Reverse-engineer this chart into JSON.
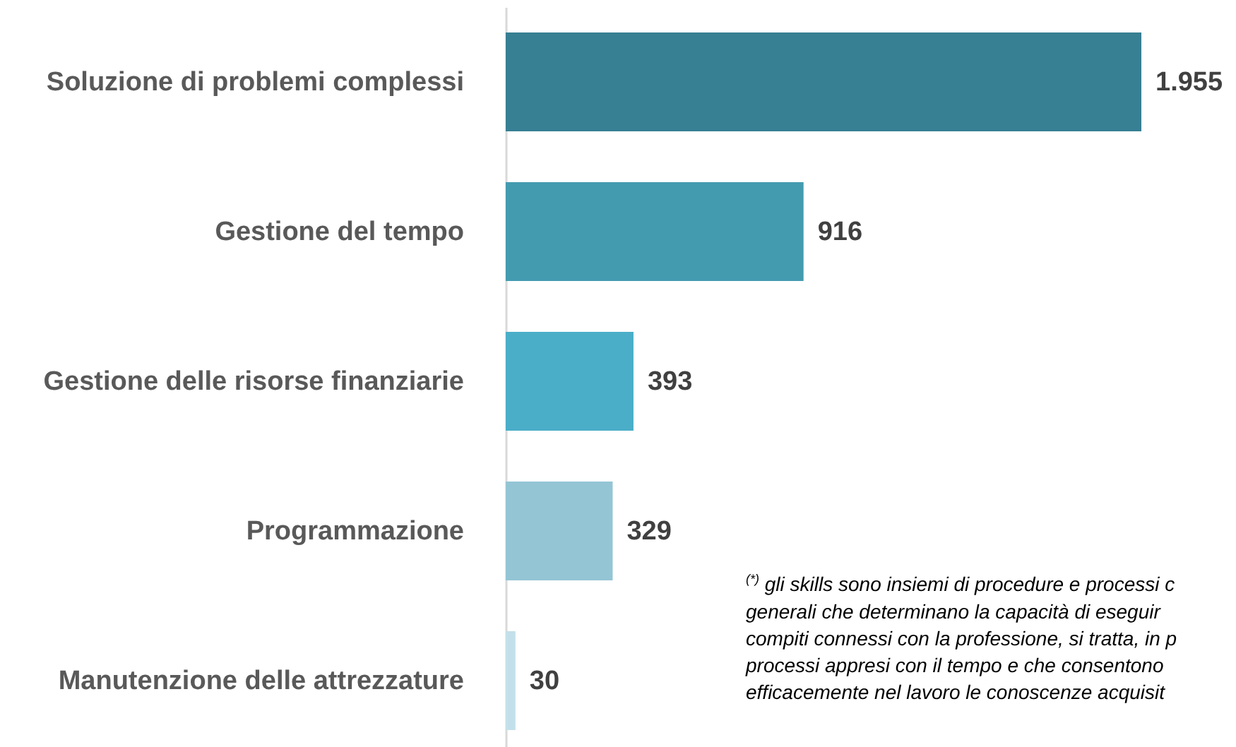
{
  "chart_data": {
    "type": "bar",
    "orientation": "horizontal",
    "categories": [
      "Soluzione di problemi complessi",
      "Gestione del tempo",
      "Gestione delle risorse finanziarie",
      "Programmazione",
      "Manutenzione delle attrezzature"
    ],
    "values": [
      1955,
      916,
      393,
      329,
      30
    ],
    "colors": [
      "#377f93",
      "#439bb0",
      "#4aaec8",
      "#94c5d5",
      "#c3e0ea"
    ],
    "value_labels": [
      "1.955",
      "916",
      "393",
      "329",
      "30"
    ],
    "annotations": [
      "$^{(*)}$ gli skills sono insiemi di procedure e processi c\ngenerali che determinano la capacità di eseguir\ncompiti connessi con la professione, si tratta, in p\nprocessi appresi con il tempo e che consentono\nefficacemente nel lavoro le conoscenze acquisit"
    ]
  }
}
